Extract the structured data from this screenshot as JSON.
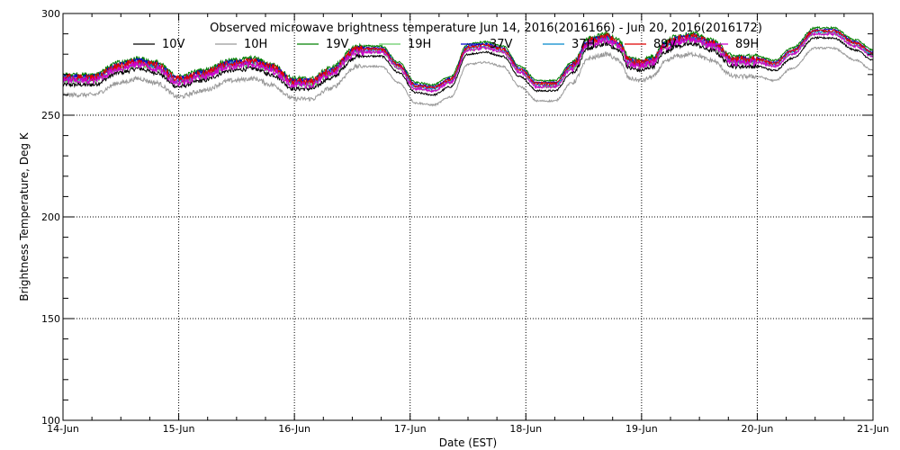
{
  "chart_data": {
    "type": "line",
    "title": "Observed microwave brightness temperature Jun 14, 2016(2016166) - Jun 20, 2016(2016172)",
    "xlabel": "Date (EST)",
    "ylabel": "Brightness Temperature, Deg K",
    "ylim": [
      100,
      300
    ],
    "xlim": [
      0,
      7
    ],
    "yticks": [
      100,
      150,
      200,
      250,
      300
    ],
    "xticks": [
      0,
      1,
      2,
      3,
      4,
      5,
      6,
      7
    ],
    "xtick_labels": [
      "14-Jun",
      "15-Jun",
      "16-Jun",
      "17-Jun",
      "18-Jun",
      "19-Jun",
      "20-Jun",
      "21-Jun"
    ],
    "grid": true,
    "legend_position": "top",
    "base_profile": {
      "x": [
        0,
        0.25,
        0.5,
        0.65,
        0.8,
        1.0,
        1.2,
        1.45,
        1.65,
        1.8,
        2.0,
        2.15,
        2.3,
        2.55,
        2.75,
        2.9,
        3.05,
        3.2,
        3.35,
        3.5,
        3.65,
        3.8,
        3.95,
        4.1,
        4.25,
        4.4,
        4.55,
        4.7,
        4.8,
        4.9,
        5.0,
        5.1,
        5.2,
        5.3,
        5.45,
        5.6,
        5.8,
        6.0,
        6.15,
        6.3,
        6.5,
        6.65,
        6.85,
        7.0
      ],
      "y": [
        269,
        269,
        275,
        277,
        275,
        268,
        271,
        276,
        277,
        274,
        267,
        267,
        272,
        283,
        283,
        275,
        265,
        264,
        268,
        284,
        285,
        283,
        273,
        266,
        266,
        275,
        287,
        289,
        286,
        277,
        276,
        278,
        285,
        288,
        289,
        286,
        278,
        278,
        276,
        282,
        292,
        292,
        286,
        281
      ]
    },
    "series": [
      {
        "name": "10V",
        "color": "#000000",
        "offset": -4
      },
      {
        "name": "10H",
        "color": "#999999",
        "offset": -9
      },
      {
        "name": "19V",
        "color": "#008000",
        "offset": 1
      },
      {
        "name": "19H",
        "color": "#66cc66",
        "offset": -2
      },
      {
        "name": "37V",
        "color": "#0000cc",
        "offset": 0
      },
      {
        "name": "37H",
        "color": "#0088cc",
        "offset": -1
      },
      {
        "name": "89V",
        "color": "#e00000",
        "offset": -0.5
      },
      {
        "name": "89H",
        "color": "#cc00cc",
        "offset": -2
      }
    ]
  }
}
